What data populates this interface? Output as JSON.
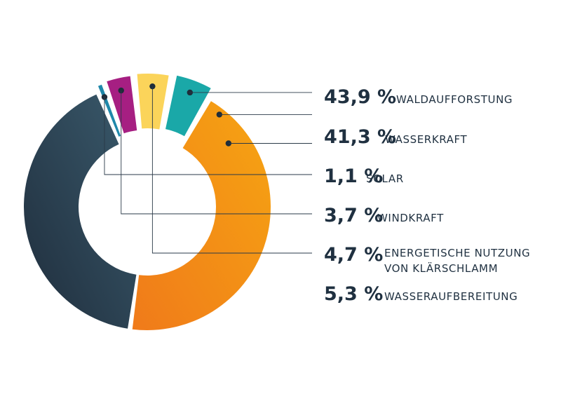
{
  "chart_data": {
    "type": "pie",
    "title": "",
    "slices": [
      {
        "value": 43.9,
        "pct_label": "43,9 %",
        "label": [
          "WALDAUFFORSTUNG"
        ],
        "color_start": "#f07a1a",
        "color_end": "#f6a512"
      },
      {
        "value": 41.3,
        "pct_label": "41,3 %",
        "label": [
          "WASSERKRAFT"
        ],
        "color_start": "#3a5a6c",
        "color_end": "#1f2d3c"
      },
      {
        "value": 1.1,
        "pct_label": "1,1 %",
        "label": [
          "SOLAR"
        ],
        "color_start": "#1f88aa",
        "color_end": "#1f88aa"
      },
      {
        "value": 3.7,
        "pct_label": "3,7 %",
        "label": [
          "WINDKRAFT"
        ],
        "color_start": "#a61f82",
        "color_end": "#a61f82"
      },
      {
        "value": 4.7,
        "pct_label": "4,7 %",
        "label": [
          "ENERGETISCHE NUTZUNG",
          "VON KLÄRSCHLAMM"
        ],
        "color_start": "#fbd45a",
        "color_end": "#fbd45a"
      },
      {
        "value": 5.3,
        "pct_label": "5,3 %",
        "label": [
          "WASSERAUFBEREITUNG"
        ],
        "color_start": "#1aa8a8",
        "color_end": "#1aa8a8"
      }
    ]
  }
}
